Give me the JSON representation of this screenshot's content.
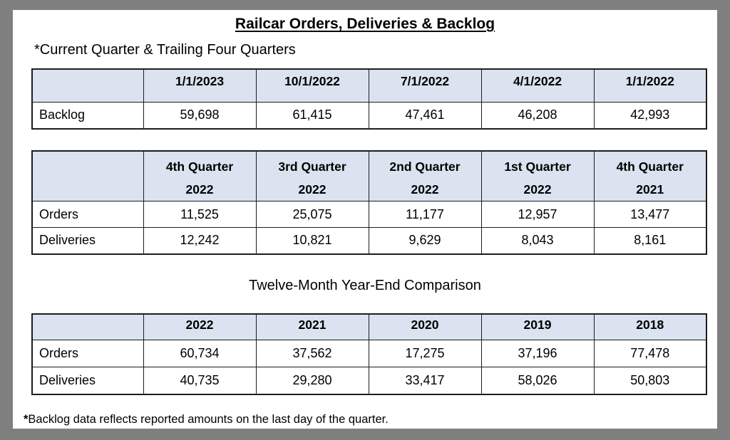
{
  "doc": {
    "title": "Railcar Orders, Deliveries & Backlog",
    "subtitle": "*Current Quarter & Trailing Four Quarters",
    "section2_heading": "Twelve-Month Year-End Comparison",
    "footnote_marker": "*",
    "footnote_text": "Backlog data reflects reported amounts on the last day of the quarter."
  },
  "tables": {
    "backlog": {
      "headers": [
        "1/1/2023",
        "10/1/2022",
        "7/1/2022",
        "4/1/2022",
        "1/1/2022"
      ],
      "rows": [
        {
          "label": "Backlog",
          "values": [
            "59,698",
            "61,415",
            "47,461",
            "46,208",
            "42,993"
          ]
        }
      ]
    },
    "quarterly": {
      "headers": [
        {
          "line1": "4th Quarter",
          "line2": "2022"
        },
        {
          "line1": "3rd Quarter",
          "line2": "2022"
        },
        {
          "line1": "2nd Quarter",
          "line2": "2022"
        },
        {
          "line1": "1st Quarter",
          "line2": "2022"
        },
        {
          "line1": "4th Quarter",
          "line2": "2021"
        }
      ],
      "rows": [
        {
          "label": "Orders",
          "values": [
            "11,525",
            "25,075",
            "11,177",
            "12,957",
            "13,477"
          ]
        },
        {
          "label": "Deliveries",
          "values": [
            "12,242",
            "10,821",
            "9,629",
            "8,043",
            "8,161"
          ]
        }
      ]
    },
    "yearly": {
      "headers": [
        "2022",
        "2021",
        "2020",
        "2019",
        "2018"
      ],
      "rows": [
        {
          "label": "Orders",
          "values": [
            "60,734",
            "37,562",
            "17,275",
            "37,196",
            "77,478"
          ]
        },
        {
          "label": "Deliveries",
          "values": [
            "40,735",
            "29,280",
            "33,417",
            "58,026",
            "50,803"
          ]
        }
      ]
    }
  },
  "colors": {
    "frame_gray": "#7f7f7f",
    "header_fill": "#dae3ef",
    "border": "#1d1d1d"
  }
}
